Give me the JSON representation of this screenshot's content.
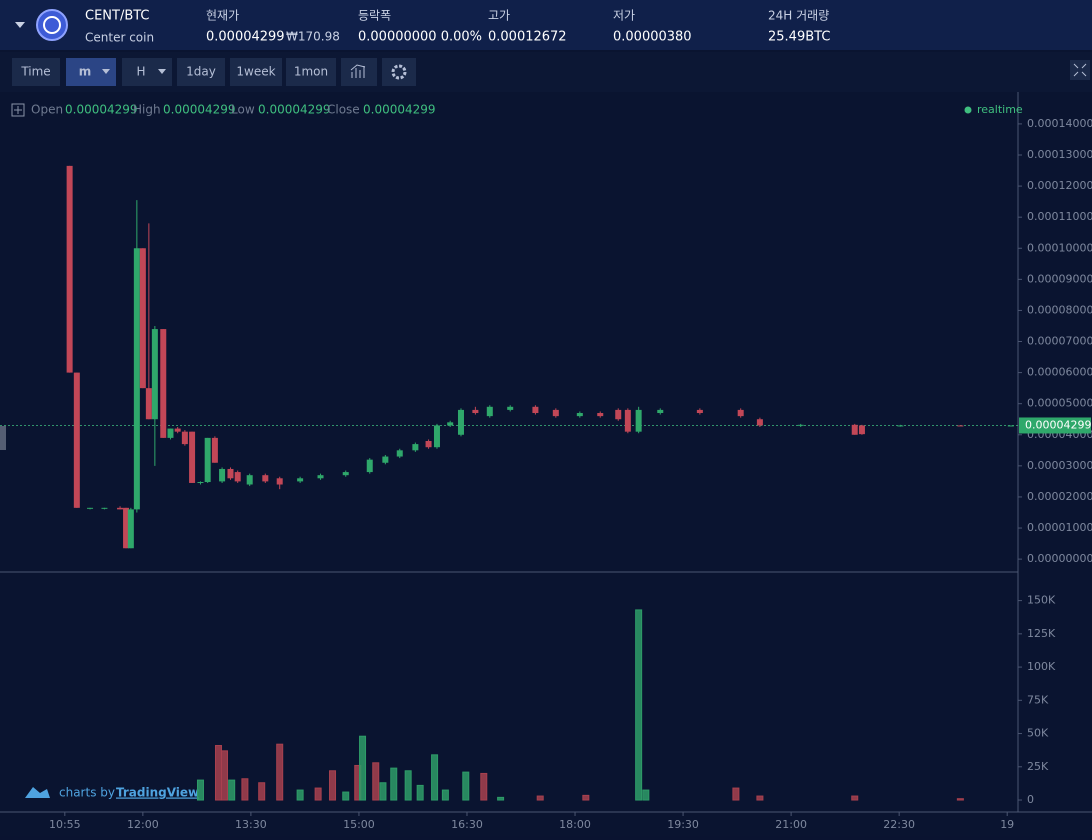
{
  "header": {
    "pair": "CENT/BTC",
    "name": "Center coin",
    "fields": [
      {
        "label": "현재가",
        "value": "0.00004299",
        "sub": "₩170.98"
      },
      {
        "label": "등락폭",
        "value": "0.00000000 0.00%"
      },
      {
        "label": "고가",
        "value": "0.00012672"
      },
      {
        "label": "저가",
        "value": "0.00000380"
      },
      {
        "label": "24H 거래량",
        "value": "25.49BTC"
      }
    ]
  },
  "toolbar": [
    "Time",
    "m",
    "H",
    "1day",
    "1week",
    "1mon"
  ],
  "legend": {
    "items": [
      {
        "label": "Open",
        "value": "0.00004299"
      },
      {
        "label": "High",
        "value": "0.00004299"
      },
      {
        "label": "Low",
        "value": "0.00004299"
      },
      {
        "label": "Close",
        "value": "0.00004299"
      }
    ],
    "status": "realtime"
  },
  "watermark": {
    "text": "charts by",
    "brand": "TradingView"
  },
  "chart_data": [
    {
      "type": "candlestick",
      "up_color": "#2fa86b",
      "down_color": "#c24757",
      "grid": false,
      "xlim": [
        601,
        1449
      ],
      "ylim": [
        -3.5e-06,
        0.0001493
      ],
      "yticks": [
        {
          "value": 0,
          "label": "0.00000000"
        },
        {
          "value": 1e-05,
          "label": "0.00001000"
        },
        {
          "value": 2e-05,
          "label": "0.00002000"
        },
        {
          "value": 3e-05,
          "label": "0.00003000"
        },
        {
          "value": 4e-05,
          "label": "0.00004000"
        },
        {
          "value": 5e-05,
          "label": "0.00005000"
        },
        {
          "value": 6e-05,
          "label": "0.00006000"
        },
        {
          "value": 7e-05,
          "label": "0.00007000"
        },
        {
          "value": 8e-05,
          "label": "0.00008000"
        },
        {
          "value": 9e-05,
          "label": "0.00009000"
        },
        {
          "value": 0.0001,
          "label": "0.00010000"
        },
        {
          "value": 0.00011,
          "label": "0.00011000"
        },
        {
          "value": 0.00012,
          "label": "0.00012000"
        },
        {
          "value": 0.00013,
          "label": "0.00013000"
        },
        {
          "value": 0.00014,
          "label": "0.00014000"
        }
      ],
      "last_price": {
        "value": 4.299e-05,
        "label": "0.00004299"
      },
      "x": [
        659,
        665,
        676,
        688,
        701,
        706,
        710,
        715,
        720,
        725,
        730,
        737,
        743,
        749,
        755,
        761,
        768,
        774,
        780,
        786,
        793,
        799,
        809,
        822,
        834,
        851,
        868,
        889,
        909,
        922,
        934,
        947,
        958,
        965,
        976,
        985,
        997,
        1009,
        1026,
        1047,
        1064,
        1084,
        1101,
        1116,
        1124,
        1133,
        1151,
        1184,
        1218,
        1234,
        1268,
        1313,
        1319,
        1351,
        1401,
        1443
      ],
      "open": [
        0.0001265,
        6e-05,
        1.65e-05,
        1.65e-05,
        1.65e-05,
        1.65e-05,
        3.5e-06,
        1.6e-05,
        0.0001,
        5.5e-05,
        4.5e-05,
        7.4e-05,
        3.9e-05,
        4.2e-05,
        4.1e-05,
        4.1e-05,
        2.45e-05,
        2.48e-05,
        3.9e-05,
        2.5e-05,
        2.9e-05,
        2.8e-05,
        2.4e-05,
        2.7e-05,
        2.6e-05,
        2.5e-05,
        2.6e-05,
        2.7e-05,
        2.8e-05,
        3.1e-05,
        3.3e-05,
        3.5e-05,
        3.8e-05,
        3.6e-05,
        4.3e-05,
        4e-05,
        4.8e-05,
        4.6e-05,
        4.8e-05,
        4.9e-05,
        4.8e-05,
        4.6e-05,
        4.7e-05,
        4.8e-05,
        4.8e-05,
        4.1e-05,
        4.7e-05,
        4.8e-05,
        4.8e-05,
        4.5e-05,
        4.3e-05,
        4.32e-05,
        4.3e-05,
        4.28e-05,
        4.3e-05,
        4.299e-05
      ],
      "high": [
        0.0001265,
        6e-05,
        1.65e-05,
        1.65e-05,
        1.7e-05,
        1.65e-05,
        1.65e-05,
        0.0001155,
        0.0001,
        0.000108,
        7.5e-05,
        7.4e-05,
        4.2e-05,
        4.25e-05,
        4.15e-05,
        4.1e-05,
        2.5e-05,
        3.9e-05,
        3.95e-05,
        2.95e-05,
        2.95e-05,
        2.85e-05,
        2.75e-05,
        2.75e-05,
        2.65e-05,
        2.65e-05,
        2.75e-05,
        2.85e-05,
        3.25e-05,
        3.35e-05,
        3.55e-05,
        3.75e-05,
        3.85e-05,
        4.35e-05,
        4.45e-05,
        4.85e-05,
        4.9e-05,
        4.95e-05,
        4.95e-05,
        4.95e-05,
        4.85e-05,
        4.75e-05,
        4.75e-05,
        4.85e-05,
        4.85e-05,
        4.9e-05,
        4.85e-05,
        4.85e-05,
        4.85e-05,
        4.55e-05,
        4.35e-05,
        4.35e-05,
        4.32e-05,
        4.32e-05,
        4.31e-05,
        4.299e-05
      ],
      "low": [
        6e-05,
        1.65e-05,
        1.6e-05,
        1.6e-05,
        1.6e-05,
        3.5e-06,
        3.5e-06,
        1.5e-05,
        5.5e-05,
        4.5e-05,
        3e-05,
        3.9e-05,
        3.85e-05,
        4.05e-05,
        3.65e-05,
        2.45e-05,
        2.4e-05,
        2.45e-05,
        3.1e-05,
        2.45e-05,
        2.55e-05,
        2.45e-05,
        2.35e-05,
        2.45e-05,
        2.25e-05,
        2.45e-05,
        2.55e-05,
        2.65e-05,
        2.75e-05,
        3.05e-05,
        3.25e-05,
        3.45e-05,
        3.55e-05,
        3.55e-05,
        4.25e-05,
        3.95e-05,
        4.65e-05,
        4.55e-05,
        4.75e-05,
        4.65e-05,
        4.55e-05,
        4.55e-05,
        4.55e-05,
        4.45e-05,
        4.05e-05,
        4.05e-05,
        4.65e-05,
        4.65e-05,
        4.55e-05,
        4.25e-05,
        4.25e-05,
        4e-05,
        4e-05,
        4.26e-05,
        4.29e-05,
        4.299e-05
      ],
      "close": [
        6e-05,
        1.65e-05,
        1.65e-05,
        1.65e-05,
        1.6e-05,
        3.5e-06,
        1.6e-05,
        0.0001,
        5.5e-05,
        4.5e-05,
        7.4e-05,
        3.9e-05,
        4.2e-05,
        4.1e-05,
        3.7e-05,
        2.45e-05,
        2.48e-05,
        3.9e-05,
        3.1e-05,
        2.9e-05,
        2.6e-05,
        2.5e-05,
        2.7e-05,
        2.5e-05,
        2.4e-05,
        2.6e-05,
        2.7e-05,
        2.8e-05,
        3.2e-05,
        3.3e-05,
        3.5e-05,
        3.7e-05,
        3.6e-05,
        4.3e-05,
        4.4e-05,
        4.8e-05,
        4.7e-05,
        4.9e-05,
        4.9e-05,
        4.7e-05,
        4.6e-05,
        4.7e-05,
        4.6e-05,
        4.5e-05,
        4.1e-05,
        4.8e-05,
        4.8e-05,
        4.7e-05,
        4.6e-05,
        4.3e-05,
        4.32e-05,
        4e-05,
        4.02e-05,
        4.3e-05,
        4.299e-05,
        4.299e-05
      ]
    },
    {
      "type": "bar",
      "grid": false,
      "xlim": [
        601,
        1449
      ],
      "xticks": [
        {
          "value": 655,
          "label": "10:55"
        },
        {
          "value": 720,
          "label": "12:00"
        },
        {
          "value": 810,
          "label": "13:30"
        },
        {
          "value": 900,
          "label": "15:00"
        },
        {
          "value": 990,
          "label": "16:30"
        },
        {
          "value": 1080,
          "label": "18:00"
        },
        {
          "value": 1170,
          "label": "19:30"
        },
        {
          "value": 1260,
          "label": "21:00"
        },
        {
          "value": 1350,
          "label": "22:30"
        },
        {
          "value": 1440,
          "label": "19"
        }
      ],
      "ylim": [
        -7500,
        167000
      ],
      "yticks": [
        0,
        {
          "value": 25000,
          "label": "25K"
        },
        {
          "value": 50000,
          "label": "50K"
        },
        {
          "value": 75000,
          "label": "75K"
        },
        {
          "value": 100000,
          "label": "100K"
        },
        {
          "value": 125000,
          "label": "125K"
        },
        {
          "value": 150000,
          "label": "150K"
        }
      ],
      "x": [
        768,
        783,
        788,
        794,
        805,
        819,
        834,
        851,
        866,
        878,
        889,
        899,
        903,
        914,
        920,
        929,
        941,
        951,
        963,
        972,
        989,
        1004,
        1018,
        1051,
        1089,
        1133,
        1139,
        1214,
        1234,
        1313,
        1401
      ],
      "values": [
        15000,
        41000,
        37000,
        15000,
        16000,
        13000,
        42000,
        7500,
        9000,
        22000,
        6000,
        26000,
        48000,
        28000,
        13000,
        24000,
        22000,
        11000,
        34000,
        7500,
        21000,
        20000,
        2000,
        3000,
        3500,
        143000,
        7500,
        9000,
        3000,
        3000,
        1000
      ],
      "colors": [
        "#2e9c68",
        "#a8414f",
        "#a8414f",
        "#2e9c68",
        "#a8414f",
        "#a8414f",
        "#a8414f",
        "#2e9c68",
        "#a8414f",
        "#a8414f",
        "#2e9c68",
        "#a8414f",
        "#2e9c68",
        "#a8414f",
        "#2e9c68",
        "#2e9c68",
        "#2e9c68",
        "#2e9c68",
        "#2e9c68",
        "#2e9c68",
        "#2e9c68",
        "#a8414f",
        "#2e9c68",
        "#a8414f",
        "#a8414f",
        "#2e9c68",
        "#2e9c68",
        "#a8414f",
        "#a8414f",
        "#a8414f",
        "#a8414f"
      ]
    }
  ]
}
